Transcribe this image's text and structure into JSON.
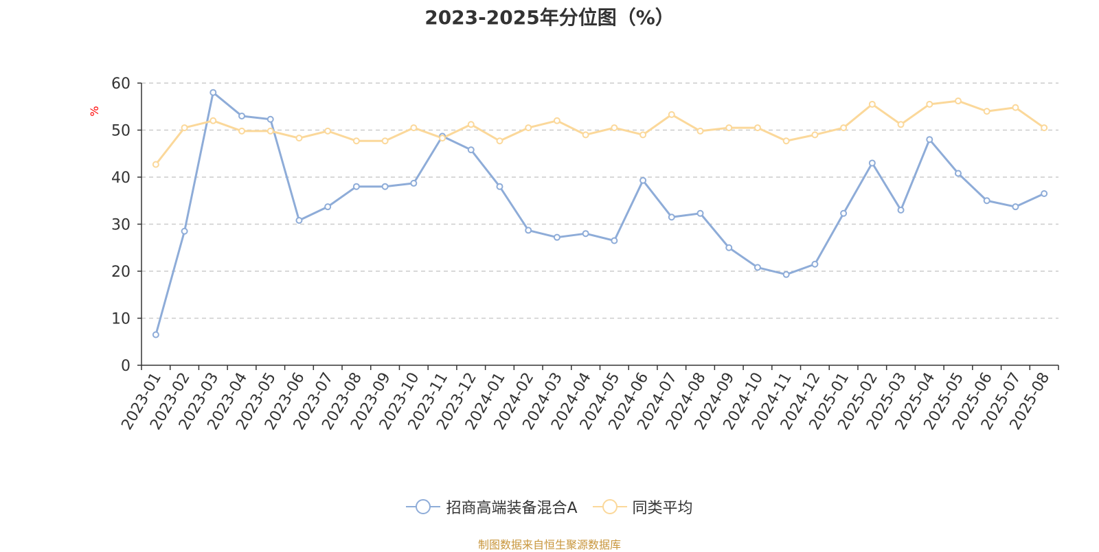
{
  "chart_data": {
    "type": "line",
    "title": "2023-2025年分位图（%）",
    "ylabel": "%",
    "ylim": [
      0,
      60
    ],
    "yticks": [
      0,
      10,
      20,
      30,
      40,
      50,
      60
    ],
    "grid": true,
    "legend_position": "bottom",
    "categories": [
      "2023-01",
      "2023-02",
      "2023-03",
      "2023-04",
      "2023-05",
      "2023-06",
      "2023-07",
      "2023-08",
      "2023-09",
      "2023-10",
      "2023-11",
      "2023-12",
      "2024-01",
      "2024-02",
      "2024-03",
      "2024-04",
      "2024-05",
      "2024-06",
      "2024-07",
      "2024-08",
      "2024-09",
      "2024-10",
      "2024-11",
      "2024-12",
      "2025-01",
      "2025-02",
      "2025-03",
      "2025-04",
      "2025-05",
      "2025-06",
      "2025-07",
      "2025-08"
    ],
    "series": [
      {
        "name": "招商高端装备混合A",
        "color": "#8eacd8",
        "values": [
          6.5,
          28.5,
          58.0,
          53.0,
          52.3,
          30.8,
          33.7,
          38.0,
          38.0,
          38.7,
          48.7,
          45.8,
          38.0,
          28.7,
          27.2,
          28.0,
          26.5,
          39.3,
          31.5,
          32.3,
          25.0,
          20.8,
          19.3,
          21.5,
          32.3,
          43.0,
          33.0,
          48.0,
          40.8,
          35.0,
          33.7,
          36.5
        ]
      },
      {
        "name": "同类平均",
        "color": "#fbd89a",
        "values": [
          42.7,
          50.5,
          52.0,
          49.8,
          49.8,
          48.3,
          49.8,
          47.7,
          47.7,
          50.5,
          48.3,
          51.2,
          47.7,
          50.5,
          52.0,
          49.0,
          50.5,
          49.0,
          53.3,
          49.8,
          50.5,
          50.5,
          47.7,
          49.0,
          50.5,
          55.5,
          51.2,
          55.5,
          56.2,
          54.0,
          54.8,
          50.5
        ]
      }
    ],
    "source": "制图数据来自恒生聚源数据库"
  }
}
